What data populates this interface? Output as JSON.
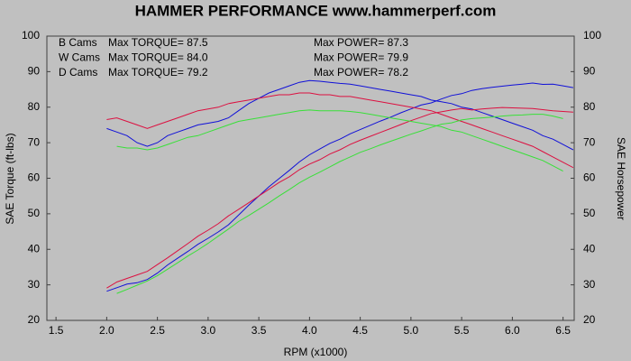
{
  "chart_data": {
    "type": "line",
    "title": "HAMMER PERFORMANCE www.hammerperf.com",
    "x_label": "RPM (x1000)",
    "y_label": "SAE Torque (ft-lbs)",
    "y2_label": "SAE Horsepower",
    "x": [
      2.0,
      2.1,
      2.2,
      2.3,
      2.4,
      2.5,
      2.6,
      2.7,
      2.8,
      2.9,
      3.0,
      3.1,
      3.2,
      3.3,
      3.4,
      3.5,
      3.6,
      3.7,
      3.8,
      3.9,
      4.0,
      4.1,
      4.2,
      4.3,
      4.4,
      4.5,
      4.6,
      4.7,
      4.8,
      4.9,
      5.0,
      5.1,
      5.2,
      5.3,
      5.4,
      5.5,
      5.6,
      5.7,
      5.8,
      5.9,
      6.0,
      6.1,
      6.2,
      6.3,
      6.4,
      6.5,
      6.6
    ],
    "xlim": [
      1.41,
      6.61
    ],
    "xticks": [
      {
        "value": 1.5,
        "label": "1.5"
      },
      {
        "value": 2,
        "label": "2.0"
      },
      {
        "value": 2.5,
        "label": "2.5"
      },
      {
        "value": 3,
        "label": "3.0"
      },
      {
        "value": 3.5,
        "label": "3.5"
      },
      {
        "value": 4,
        "label": "4.0"
      },
      {
        "value": 4.5,
        "label": "4.5"
      },
      {
        "value": 5,
        "label": "5.0"
      },
      {
        "value": 5.5,
        "label": "5.5"
      },
      {
        "value": 6,
        "label": "6.0"
      },
      {
        "value": 6.5,
        "label": "6.5"
      }
    ],
    "ylim": [
      20,
      100
    ],
    "yticks": [
      20,
      30,
      40,
      50,
      60,
      70,
      80,
      90,
      100
    ],
    "y2lim": [
      20,
      100
    ],
    "y2ticks": [
      20,
      30,
      40,
      50,
      60,
      70,
      80,
      90,
      100
    ],
    "series": [
      {
        "name": "B Cams",
        "color": "#1010d8",
        "max_label": "Max TORQUE= 87.5",
        "values": [
          74,
          73,
          72,
          70,
          69,
          70,
          72,
          73,
          74,
          75,
          75.5,
          76,
          77,
          79,
          81,
          82.5,
          84,
          85,
          86,
          87,
          87.5,
          87.3,
          87,
          86.7,
          86.5,
          86,
          85.5,
          85,
          84.5,
          84,
          83.5,
          83,
          82,
          81.5,
          81,
          80,
          79.5,
          78.5,
          77.5,
          76.5,
          75.5,
          74.5,
          73.5,
          72,
          71,
          69.5,
          68
        ]
      },
      {
        "color": "#1010d8",
        "axis": "y2",
        "max_label": "Max POWER= 87.3",
        "values": [
          28.2,
          29.2,
          30.2,
          30.6,
          31.5,
          33.3,
          35.6,
          37.5,
          39.4,
          41.4,
          43.1,
          44.9,
          46.9,
          49.6,
          52.4,
          55.0,
          57.6,
          59.9,
          62.2,
          64.6,
          66.6,
          68.2,
          69.8,
          71.0,
          72.5,
          73.7,
          74.9,
          76.1,
          77.2,
          78.4,
          79.5,
          80.6,
          81.2,
          82.3,
          83.3,
          83.8,
          84.7,
          85.2,
          85.6,
          85.9,
          86.2,
          86.5,
          86.8,
          86.4,
          86.5,
          86.0,
          85.5
        ]
      },
      {
        "name": "W Cams",
        "color": "#dc1040",
        "max_label": "Max TORQUE= 84.0",
        "values": [
          76.5,
          77,
          76,
          75,
          74,
          75,
          76,
          77,
          78,
          79,
          79.5,
          80,
          81,
          81.5,
          82,
          82.5,
          83,
          83.5,
          83.5,
          84,
          84,
          83.5,
          83.5,
          83,
          83,
          82.5,
          82,
          81.5,
          81,
          80.5,
          80,
          79.5,
          79,
          78,
          77,
          76,
          75,
          74,
          73,
          72,
          71,
          70,
          69,
          67.5,
          66,
          64.5,
          63
        ]
      },
      {
        "color": "#dc1040",
        "axis": "y2",
        "max_label": "Max POWER= 79.9",
        "values": [
          29.1,
          30.8,
          31.8,
          32.8,
          33.8,
          35.7,
          37.6,
          39.6,
          41.6,
          43.7,
          45.4,
          47.2,
          49.4,
          51.2,
          53.1,
          55.0,
          56.9,
          58.8,
          60.4,
          62.4,
          64.0,
          65.2,
          66.8,
          68.0,
          69.5,
          70.7,
          71.8,
          72.9,
          74.0,
          75.1,
          76.2,
          77.2,
          78.2,
          78.7,
          79.2,
          79.6,
          79.2,
          79.5,
          79.7,
          79.9,
          79.8,
          79.7,
          79.6,
          79.3,
          79.0,
          78.8,
          78.6
        ]
      },
      {
        "name": "D Cams",
        "color": "#38e038",
        "max_label": "Max TORQUE= 79.2",
        "values": [
          null,
          69,
          68.5,
          68.5,
          68,
          68.5,
          69.5,
          70.5,
          71.5,
          72,
          73,
          74,
          75,
          76,
          76.5,
          77,
          77.5,
          78,
          78.5,
          79,
          79.2,
          79,
          79,
          79,
          78.8,
          78.5,
          78,
          77.5,
          77,
          76.5,
          76,
          75.5,
          75,
          74.5,
          73.5,
          73,
          72,
          71,
          70,
          69,
          68,
          67,
          66,
          65,
          63.5,
          62,
          null
        ]
      },
      {
        "color": "#38e038",
        "axis": "y2",
        "max_label": "Max POWER= 78.2",
        "values": [
          null,
          27.6,
          28.7,
          29.9,
          31.1,
          32.6,
          34.4,
          36.2,
          38.1,
          39.8,
          41.7,
          43.7,
          45.7,
          47.8,
          49.5,
          51.3,
          53.1,
          55.0,
          56.8,
          58.7,
          60.3,
          61.7,
          63.2,
          64.7,
          66.0,
          67.3,
          68.3,
          69.4,
          70.4,
          71.4,
          72.4,
          73.3,
          74.3,
          75.2,
          75.6,
          76.4,
          76.8,
          77.0,
          77.2,
          77.5,
          77.7,
          77.8,
          78.0,
          78.0,
          77.5,
          76.8,
          null
        ]
      }
    ]
  }
}
